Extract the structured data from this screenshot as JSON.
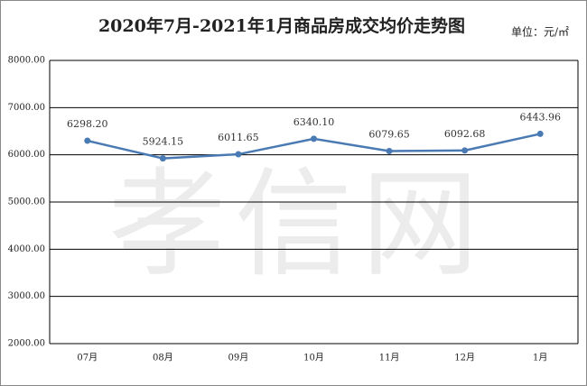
{
  "chart_data": {
    "type": "line",
    "title": "2020年7月-2021年1月商品房成交均价走势图",
    "unit": "单位：元/㎡",
    "watermark": "孝信网",
    "categories": [
      "07月",
      "08月",
      "09月",
      "10月",
      "11月",
      "12月",
      "1月"
    ],
    "series": [
      {
        "color": "#4a7ab3",
        "values": [
          6298.2,
          5924.15,
          6011.65,
          6340.1,
          6079.65,
          6092.68,
          6443.96
        ],
        "value_labels": [
          "6298.20",
          "5924.15",
          "6011.65",
          "6340.10",
          "6079.65",
          "6092.68",
          "6443.96"
        ]
      }
    ],
    "ylim": [
      2000,
      8000
    ],
    "yticks": [
      {
        "value": 2000,
        "label": "2000.00"
      },
      {
        "value": 3000,
        "label": "3000.00"
      },
      {
        "value": 4000,
        "label": "4000.00"
      },
      {
        "value": 5000,
        "label": "5000.00"
      },
      {
        "value": 6000,
        "label": "6000.00"
      },
      {
        "value": 7000,
        "label": "7000.00"
      },
      {
        "value": 8000,
        "label": "8000.00"
      }
    ],
    "grid": true
  }
}
